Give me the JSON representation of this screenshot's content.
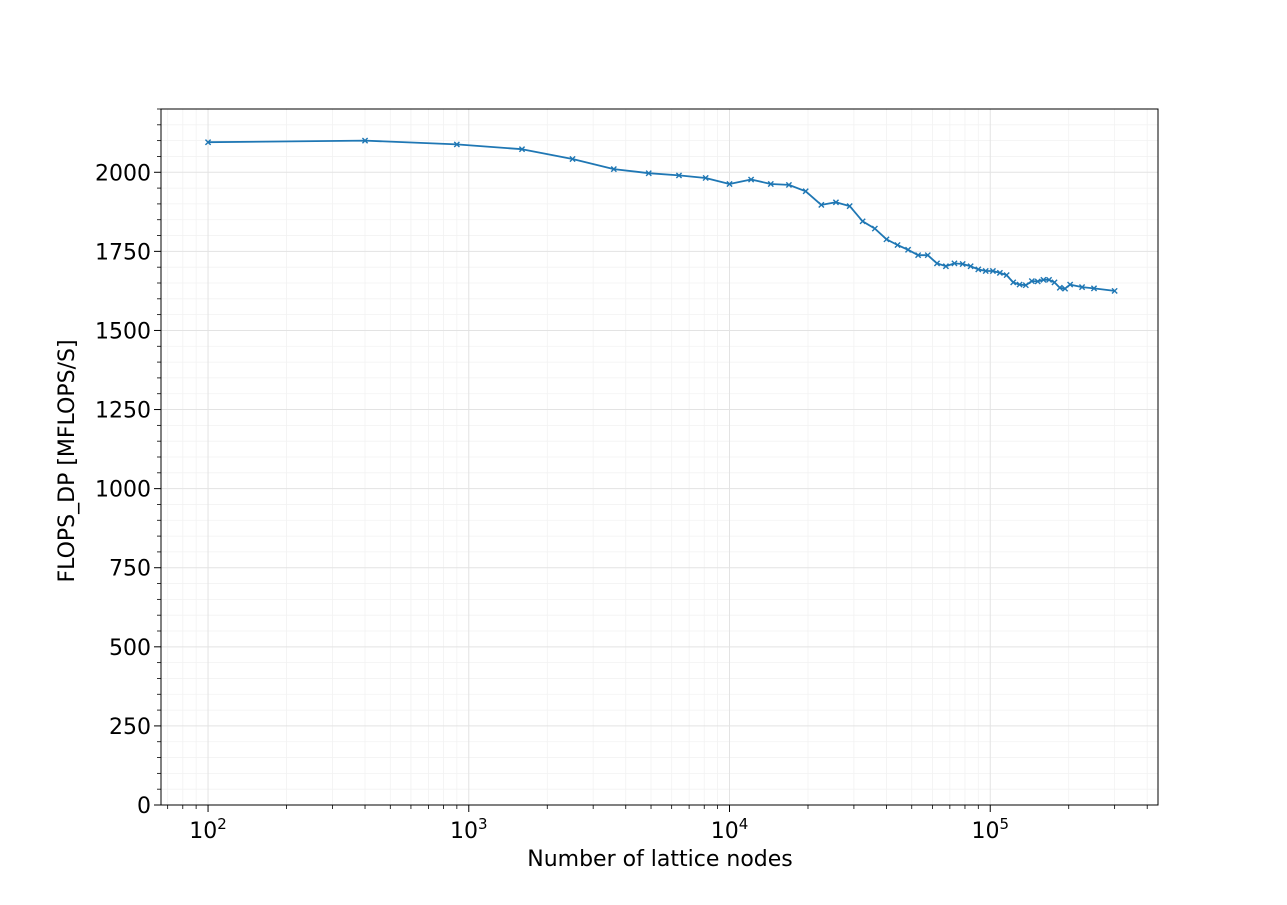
{
  "chart_data": {
    "type": "line",
    "title": "",
    "xlabel": "Number of lattice nodes",
    "ylabel": "FLOPS_DP [MFLOPS/S]",
    "xscale": "log",
    "xlim": [
      66,
      440000
    ],
    "ylim": [
      0,
      2200
    ],
    "grid": true,
    "minor_grid": true,
    "marker": "x",
    "x_ticks": [
      {
        "value": 100,
        "base": "10",
        "exp": "2"
      },
      {
        "value": 1000,
        "base": "10",
        "exp": "3"
      },
      {
        "value": 10000,
        "base": "10",
        "exp": "4"
      },
      {
        "value": 100000,
        "base": "10",
        "exp": "5"
      }
    ],
    "y_ticks": [
      {
        "value": 0,
        "label": "0"
      },
      {
        "value": 250,
        "label": "250"
      },
      {
        "value": 500,
        "label": "500"
      },
      {
        "value": 750,
        "label": "750"
      },
      {
        "value": 1000,
        "label": "1000"
      },
      {
        "value": 1250,
        "label": "1250"
      },
      {
        "value": 1500,
        "label": "1500"
      },
      {
        "value": 1750,
        "label": "1750"
      },
      {
        "value": 2000,
        "label": "2000"
      }
    ],
    "series": [
      {
        "color": "#1f77b4",
        "x": [
          100,
          400,
          900,
          1600,
          2500,
          3600,
          4900,
          6400,
          8100,
          10000,
          12100,
          14400,
          16900,
          19600,
          22500,
          25600,
          28900,
          32400,
          36100,
          40000,
          44100,
          48400,
          52900,
          57600,
          62500,
          67600,
          72900,
          78400,
          84100,
          90000,
          96100,
          102400,
          108900,
          115600,
          122500,
          129600,
          136900,
          144400,
          152100,
          160000,
          168100,
          176400,
          184900,
          193600,
          202500,
          225000,
          250000,
          300000
        ],
        "y": [
          2095,
          2100,
          2088,
          2073,
          2042,
          2010,
          1997,
          1990,
          1982,
          1963,
          1977,
          1963,
          1960,
          1940,
          1897,
          1905,
          1893,
          1845,
          1822,
          1788,
          1770,
          1755,
          1738,
          1738,
          1712,
          1703,
          1712,
          1710,
          1703,
          1693,
          1688,
          1688,
          1682,
          1675,
          1652,
          1645,
          1643,
          1656,
          1655,
          1660,
          1660,
          1652,
          1635,
          1632,
          1645,
          1637,
          1633,
          1625
        ]
      }
    ]
  }
}
